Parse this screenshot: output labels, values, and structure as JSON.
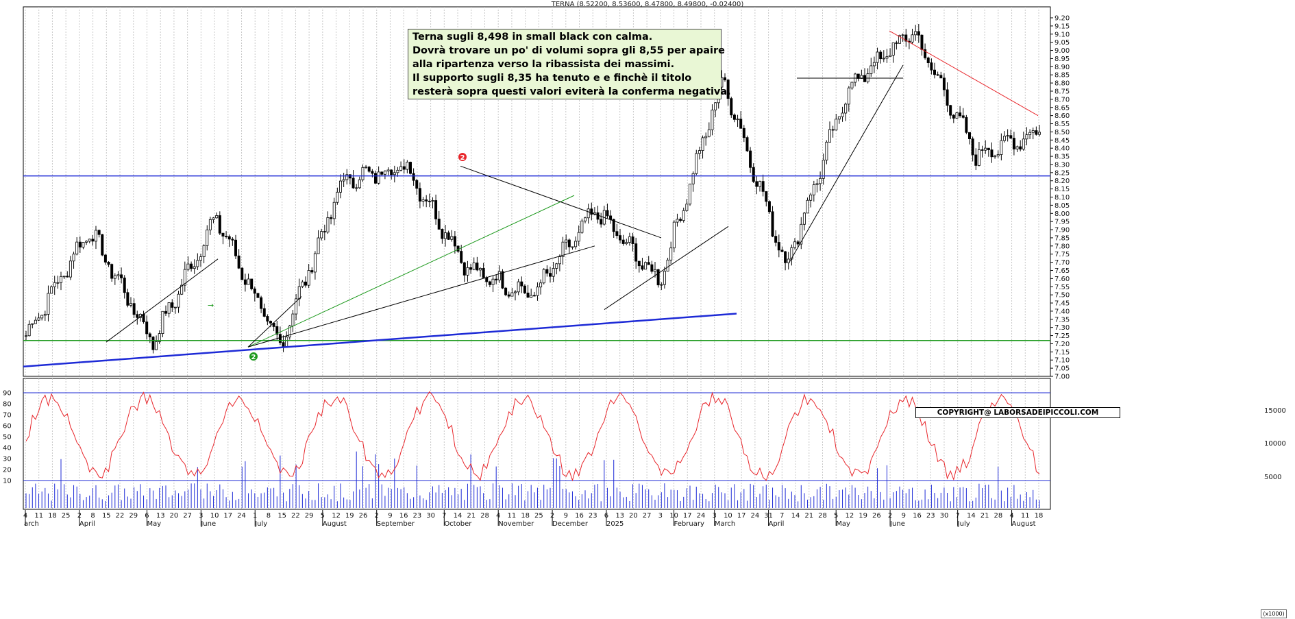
{
  "header": {
    "title": "TERNA (8.52200, 8.53600, 8.47800, 8.49800, -0.02400)"
  },
  "annotation": {
    "lines": [
      "Terna sugli 8,498 in small black con calma.",
      "Dovrà trovare un po' di volumi sopra gli 8,55 per apaire",
      "alla ripartenza verso la ribassista dei massimi.",
      "Il supporto sugli 8,35 ha tenuto e e finchè il titolo",
      "resterà sopra questi valori eviterà la conferma negativa."
    ],
    "background": "#e9f7d5"
  },
  "copyright": "COPYRIGHT@ LABORSADEIPICCOLI.COM",
  "volume_unit": "(x1000)",
  "markers": {
    "top": "2",
    "bottom": "2"
  },
  "colors": {
    "support_blue": "#1d2ad6",
    "support_green": "#1e9a1e",
    "resistance_red": "#e8262b",
    "osc_red": "#e8262b",
    "volume_blue": "#1d2ad6",
    "marker_red": "#e8262b",
    "marker_green": "#1e9a1e"
  },
  "chart_data": [
    {
      "type": "candlestick",
      "ylim": [
        7.0,
        9.2
      ],
      "y_ticks": [
        "9.20",
        "9.15",
        "9.10",
        "9.05",
        "9.00",
        "8.95",
        "8.90",
        "8.85",
        "8.80",
        "8.75",
        "8.70",
        "8.65",
        "8.60",
        "8.55",
        "8.50",
        "8.45",
        "8.40",
        "8.35",
        "8.30",
        "8.25",
        "8.20",
        "8.15",
        "8.10",
        "8.05",
        "8.00",
        "7.95",
        "7.90",
        "7.85",
        "7.80",
        "7.75",
        "7.70",
        "7.65",
        "7.60",
        "7.55",
        "7.50",
        "7.45",
        "7.40",
        "7.35",
        "7.30",
        "7.25",
        "7.20",
        "7.15",
        "7.10",
        "7.05",
        "7.00"
      ],
      "last": {
        "open": 8.522,
        "high": 8.536,
        "low": 8.478,
        "close": 8.498,
        "change": -0.024
      },
      "key_points": [
        {
          "label": "start",
          "close": 7.25
        },
        {
          "label": "april peak",
          "close": 7.9
        },
        {
          "label": "april low",
          "close": 7.21
        },
        {
          "label": "may high",
          "close": 7.98
        },
        {
          "label": "june low",
          "close": 7.18
        },
        {
          "label": "september high",
          "close": 8.2
        },
        {
          "label": "october high",
          "close": 8.29
        },
        {
          "label": "november low",
          "close": 7.65
        },
        {
          "label": "december low",
          "close": 7.5
        },
        {
          "label": "january high",
          "close": 8.02
        },
        {
          "label": "march low",
          "close": 7.58
        },
        {
          "label": "april spike",
          "close": 8.83
        },
        {
          "label": "april low",
          "close": 7.68
        },
        {
          "label": "may high",
          "close": 8.78
        },
        {
          "label": "june high",
          "close": 9.12
        },
        {
          "label": "july low",
          "close": 8.36
        },
        {
          "label": "last",
          "close": 8.498
        }
      ],
      "horizontal_levels": [
        {
          "value": 8.23,
          "color": "blue"
        },
        {
          "value": 7.22,
          "color": "green"
        }
      ]
    },
    {
      "type": "line+bar",
      "oscillator_ylim": [
        0,
        100
      ],
      "oscillator_ticks": [
        "90",
        "80",
        "70",
        "60",
        "50",
        "40",
        "30",
        "20",
        "10"
      ],
      "oscillator_levels": [
        90,
        10
      ],
      "volume_ticks": [
        "15000",
        "10000",
        "5000"
      ],
      "x_tick_labels": [
        "4",
        "11",
        "18",
        "25",
        "2",
        "8",
        "15",
        "22",
        "29",
        "6",
        "13",
        "20",
        "27",
        "3",
        "10",
        "17",
        "24",
        "1",
        "8",
        "15",
        "22",
        "29",
        "5",
        "12",
        "19",
        "26",
        "2",
        "9",
        "16",
        "23",
        "30",
        "7",
        "14",
        "21",
        "28",
        "4",
        "11",
        "18",
        "25",
        "2",
        "9",
        "16",
        "23",
        "6",
        "13",
        "20",
        "27",
        "3",
        "10",
        "17",
        "24",
        "3",
        "10",
        "17",
        "24",
        "31",
        "7",
        "14",
        "21",
        "28",
        "5",
        "12",
        "19",
        "26",
        "2",
        "9",
        "16",
        "23",
        "30",
        "7",
        "14",
        "21",
        "28",
        "4",
        "11",
        "18"
      ],
      "month_labels": [
        "arch",
        "April",
        "May",
        "June",
        "July",
        "August",
        "September",
        "October",
        "November",
        "December",
        "2025",
        "February",
        "March",
        "April",
        "May",
        "June",
        "July",
        "August"
      ]
    }
  ]
}
